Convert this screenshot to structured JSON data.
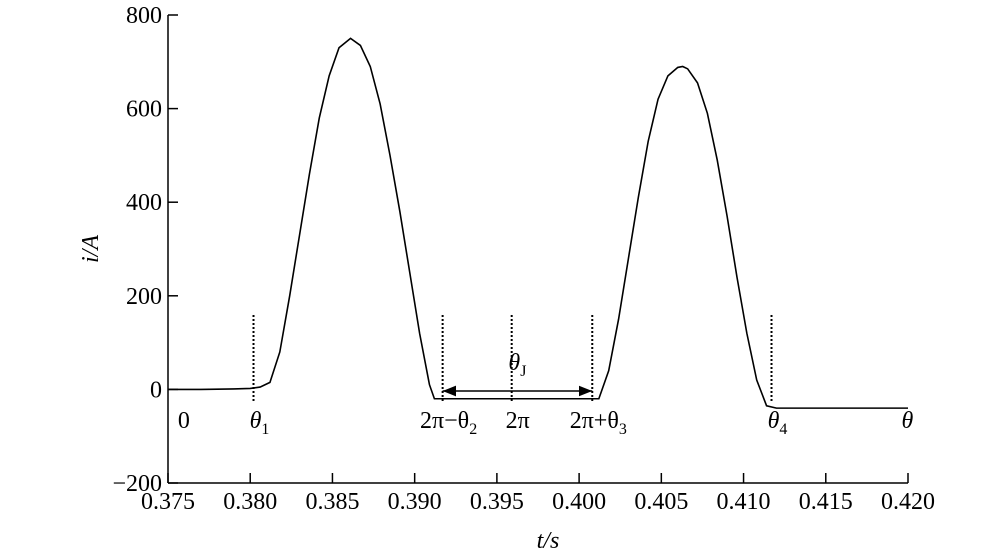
{
  "chart_data": {
    "type": "line",
    "color": "#000000",
    "xlabel": "t/s",
    "ylabel": "i/A",
    "x": [
      0.375,
      0.377,
      0.379,
      0.38,
      0.3806,
      0.3812,
      0.3818,
      0.3824,
      0.383,
      0.3836,
      0.3842,
      0.3848,
      0.3854,
      0.3861,
      0.3867,
      0.3873,
      0.3879,
      0.3885,
      0.3891,
      0.3897,
      0.3903,
      0.3909,
      0.3912,
      0.395,
      0.399,
      0.4012,
      0.4018,
      0.4024,
      0.403,
      0.4036,
      0.4042,
      0.4048,
      0.4054,
      0.406,
      0.4063,
      0.4066,
      0.4072,
      0.4078,
      0.4084,
      0.409,
      0.4096,
      0.4102,
      0.4108,
      0.4114,
      0.412,
      0.416,
      0.42
    ],
    "values": [
      0,
      0,
      1,
      2,
      5,
      15,
      80,
      200,
      330,
      460,
      580,
      670,
      730,
      750,
      735,
      690,
      610,
      500,
      380,
      250,
      120,
      10,
      -20,
      -20,
      -20,
      -20,
      40,
      150,
      280,
      410,
      530,
      620,
      670,
      688,
      690,
      685,
      655,
      590,
      490,
      370,
      240,
      120,
      20,
      -35,
      -40,
      -40,
      -40
    ],
    "xlim": [
      0.375,
      0.42
    ],
    "xticks": [
      0.375,
      {
        "value": 0.38,
        "label": "0.380"
      },
      0.385,
      {
        "value": 0.39,
        "label": "0.390"
      },
      0.395,
      {
        "value": 0.4,
        "label": "0.400"
      },
      0.405,
      {
        "value": 0.41,
        "label": "0.410"
      },
      0.415,
      {
        "value": 0.42,
        "label": "0.420"
      }
    ],
    "ylim": [
      -200,
      800
    ],
    "yticks": [
      {
        "value": -200,
        "label": "−200"
      },
      0,
      200,
      400,
      600,
      800
    ],
    "annotations": [
      {
        "label": "0",
        "x": 0.3756,
        "marker": false
      },
      {
        "label": "θ",
        "subscript": "1",
        "x": 0.3802,
        "marker": true
      },
      {
        "label": "2π−θ",
        "subscript": "2",
        "x": 0.3917,
        "marker": true
      },
      {
        "label": "2π",
        "x": 0.3959,
        "marker": true
      },
      {
        "label": "2π+θ",
        "subscript": "3",
        "x": 0.4008,
        "marker": true
      },
      {
        "label": "θ",
        "subscript": "4",
        "x": 0.4117,
        "marker": true
      },
      {
        "label": "θ",
        "x": 0.4196,
        "marker": false
      }
    ],
    "span": {
      "label": "θ",
      "subscript": "J",
      "from": 0.3917,
      "to": 0.4008
    }
  }
}
